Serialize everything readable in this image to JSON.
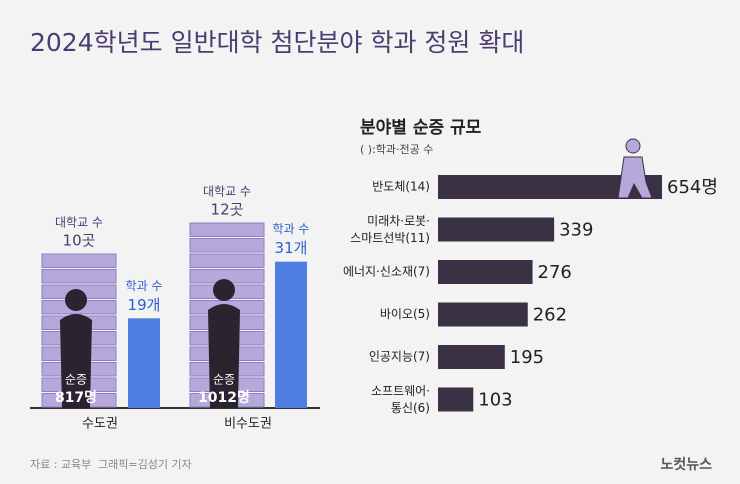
{
  "header": {
    "title": "2024학년도 일반대학 첨단분야 학과 정원 확대"
  },
  "chart_data": [
    {
      "type": "group-bar",
      "categories": [
        "수도권",
        "비수도권"
      ],
      "series": [
        {
          "name": "대학교 수",
          "color": "#b7a8dc",
          "values": [
            10,
            12
          ],
          "value_labels": [
            "10곳",
            "12곳"
          ]
        },
        {
          "name": "학과 수",
          "color": "#4f7ee3",
          "values": [
            19,
            31
          ],
          "value_labels": [
            "19개",
            "31개"
          ]
        },
        {
          "name": "순증",
          "color": "#ffffff",
          "values": [
            817,
            1012
          ],
          "value_labels": [
            "817명",
            "1012명"
          ]
        }
      ]
    },
    {
      "type": "hbar",
      "title": "분야별 순증 규모",
      "subtitle": "( ):학과·전공 수",
      "categories": [
        "반도체(14)",
        "미래차·로봇·\n스마트선박(11)",
        "에너지·신소재(7)",
        "바이오(5)",
        "인공지능(7)",
        "소프트웨어·\n통신(6)"
      ],
      "values": [
        654,
        339,
        276,
        262,
        195,
        103
      ],
      "value_labels": [
        "654명",
        "339",
        "276",
        "262",
        "195",
        "103"
      ],
      "color": "#3a3244"
    }
  ],
  "footer": {
    "source": "자료 : 교육부",
    "credit": "그래픽=김성기 기자",
    "logo": "노컷뉴스"
  }
}
